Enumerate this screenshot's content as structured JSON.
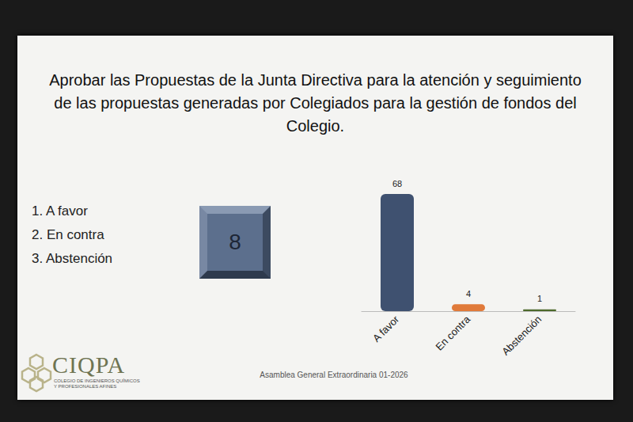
{
  "chart_data": {
    "type": "bar",
    "title": "Aprobar las Propuestas de la Junta Directiva para la atención y seguimiento de las propuestas generadas por Colegiados para la gestión de fondos del Colegio.",
    "categories": [
      "A favor",
      "En contra",
      "Abstención"
    ],
    "values": [
      68,
      4,
      1
    ],
    "colors": [
      "#3f5170",
      "#e07a3a",
      "#4d6a2c"
    ],
    "data_labels": true,
    "tick_labels": "x",
    "grid": false
  },
  "options_list": [
    "1.  A favor",
    "2.  En contra",
    "3.  Abstención"
  ],
  "counter": 8,
  "logo": {
    "name": "CIQPA",
    "subtitle": [
      "COLEGIO DE INGENIEROS QUÍMICOS",
      "Y PROFESIONALES AFINES"
    ]
  },
  "footer": "Asamblea General Extraordinaria 01-2026"
}
